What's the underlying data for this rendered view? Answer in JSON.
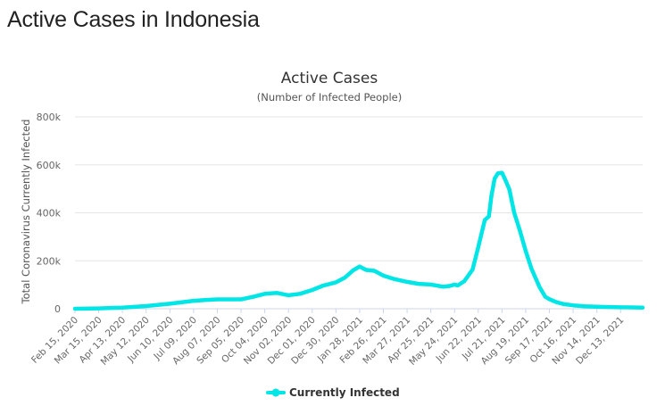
{
  "page": {
    "title": "Active Cases in Indonesia"
  },
  "chart_data": {
    "type": "line",
    "title": "Active Cases",
    "subtitle": "(Number of Infected People)",
    "ylabel": "Total Coronavirus Currently Infected",
    "xlabel": "",
    "ylim": [
      0,
      800000
    ],
    "yticks": [
      0,
      200000,
      400000,
      600000,
      800000
    ],
    "ytick_labels": [
      "0",
      "200k",
      "400k",
      "600k",
      "800k"
    ],
    "x_range": [
      "2020-02-15",
      "2022-01-09"
    ],
    "x_tick_labels": [
      "Feb 15, 2020",
      "Mar 15, 2020",
      "Apr 13, 2020",
      "May 12, 2020",
      "Jun 10, 2020",
      "Jul 09, 2020",
      "Aug 07, 2020",
      "Sep 05, 2020",
      "Oct 04, 2020",
      "Nov 02, 2020",
      "Dec 01, 2020",
      "Dec 30, 2020",
      "Jan 28, 2021",
      "Feb 26, 2021",
      "Mar 27, 2021",
      "Apr 25, 2021",
      "May 24, 2021",
      "Jun 22, 2021",
      "Jul 21, 2021",
      "Aug 19, 2021",
      "Sep 17, 2021",
      "Oct 16, 2021",
      "Nov 14, 2021",
      "Dec 13, 2021"
    ],
    "grid": true,
    "legend": "bottom-center",
    "colors": {
      "series": "#00e5e5",
      "grid": "#e6e6e6",
      "axis": "#ccd6eb"
    },
    "series": [
      {
        "name": "Currently Infected",
        "x": [
          "2020-02-15",
          "2020-03-15",
          "2020-04-13",
          "2020-05-12",
          "2020-06-10",
          "2020-07-09",
          "2020-07-25",
          "2020-08-07",
          "2020-08-22",
          "2020-09-05",
          "2020-09-20",
          "2020-10-04",
          "2020-10-19",
          "2020-11-02",
          "2020-11-16",
          "2020-12-01",
          "2020-12-15",
          "2020-12-30",
          "2021-01-10",
          "2021-01-20",
          "2021-01-28",
          "2021-02-05",
          "2021-02-15",
          "2021-02-26",
          "2021-03-10",
          "2021-03-27",
          "2021-04-10",
          "2021-04-25",
          "2021-05-10",
          "2021-05-18",
          "2021-05-24",
          "2021-05-28",
          "2021-06-05",
          "2021-06-15",
          "2021-06-22",
          "2021-06-30",
          "2021-07-05",
          "2021-07-08",
          "2021-07-12",
          "2021-07-16",
          "2021-07-21",
          "2021-07-26",
          "2021-07-30",
          "2021-08-05",
          "2021-08-12",
          "2021-08-19",
          "2021-08-26",
          "2021-09-05",
          "2021-09-12",
          "2021-09-17",
          "2021-09-25",
          "2021-10-05",
          "2021-10-16",
          "2021-10-30",
          "2021-11-14",
          "2021-11-30",
          "2021-12-13",
          "2021-12-25",
          "2022-01-09"
        ],
        "values": [
          0,
          1500,
          5000,
          11000,
          21000,
          33000,
          37000,
          39000,
          39000,
          39000,
          50000,
          62000,
          66000,
          56000,
          62000,
          78000,
          97000,
          110000,
          130000,
          160000,
          176000,
          162000,
          158000,
          138000,
          125000,
          112000,
          104000,
          101000,
          92000,
          95000,
          101000,
          97000,
          115000,
          163000,
          257000,
          370000,
          385000,
          470000,
          542000,
          565000,
          567000,
          530000,
          498000,
          400000,
          325000,
          240000,
          167000,
          90000,
          50000,
          40000,
          28000,
          19000,
          14000,
          10000,
          8500,
          7000,
          6000,
          5500,
          5000
        ]
      }
    ]
  }
}
